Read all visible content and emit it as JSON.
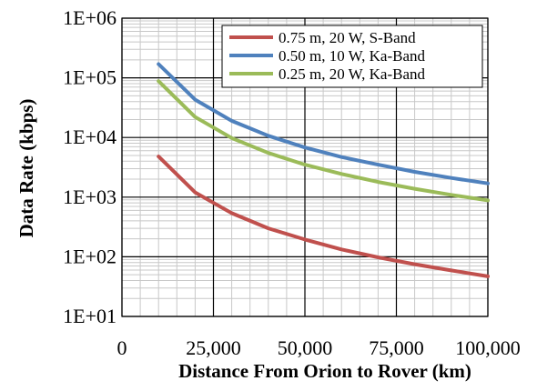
{
  "chart_data": {
    "type": "line",
    "xlabel": "Distance From Orion to Rover (km)",
    "ylabel": "Data Rate (kbps)",
    "ylog": true,
    "xlim": [
      0,
      100000
    ],
    "ylim": [
      10,
      1000000
    ],
    "grid": true,
    "legend_position": "top-right",
    "x_ticks": [
      {
        "value": 0,
        "label": "0"
      },
      {
        "value": 25000,
        "label": "25,000"
      },
      {
        "value": 50000,
        "label": "50,000"
      },
      {
        "value": 75000,
        "label": "75,000"
      },
      {
        "value": 100000,
        "label": "100,000"
      }
    ],
    "y_ticks": [
      {
        "value": 10,
        "label": "1E+01"
      },
      {
        "value": 100,
        "label": "1E+02"
      },
      {
        "value": 1000,
        "label": "1E+03"
      },
      {
        "value": 10000,
        "label": "1E+04"
      },
      {
        "value": 100000,
        "label": "1E+05"
      },
      {
        "value": 1000000,
        "label": "1E+06"
      }
    ],
    "x": [
      10000,
      20000,
      30000,
      40000,
      50000,
      60000,
      70000,
      80000,
      90000,
      100000
    ],
    "series": [
      {
        "name": "0.75 m, 20 W, S-Band",
        "color": "#C0504D",
        "values": [
          4800,
          1200,
          540,
          300,
          195,
          133,
          98,
          75,
          59,
          47
        ]
      },
      {
        "name": "0.50 m, 10 W, Ka-Band",
        "color": "#4F81BD",
        "values": [
          170000,
          43000,
          19000,
          10700,
          6800,
          4700,
          3500,
          2650,
          2100,
          1700
        ]
      },
      {
        "name": "0.25 m, 20 W, Ka-Band",
        "color": "#9BBB59",
        "values": [
          88000,
          22000,
          9800,
          5500,
          3500,
          2450,
          1800,
          1380,
          1090,
          880
        ]
      }
    ]
  }
}
